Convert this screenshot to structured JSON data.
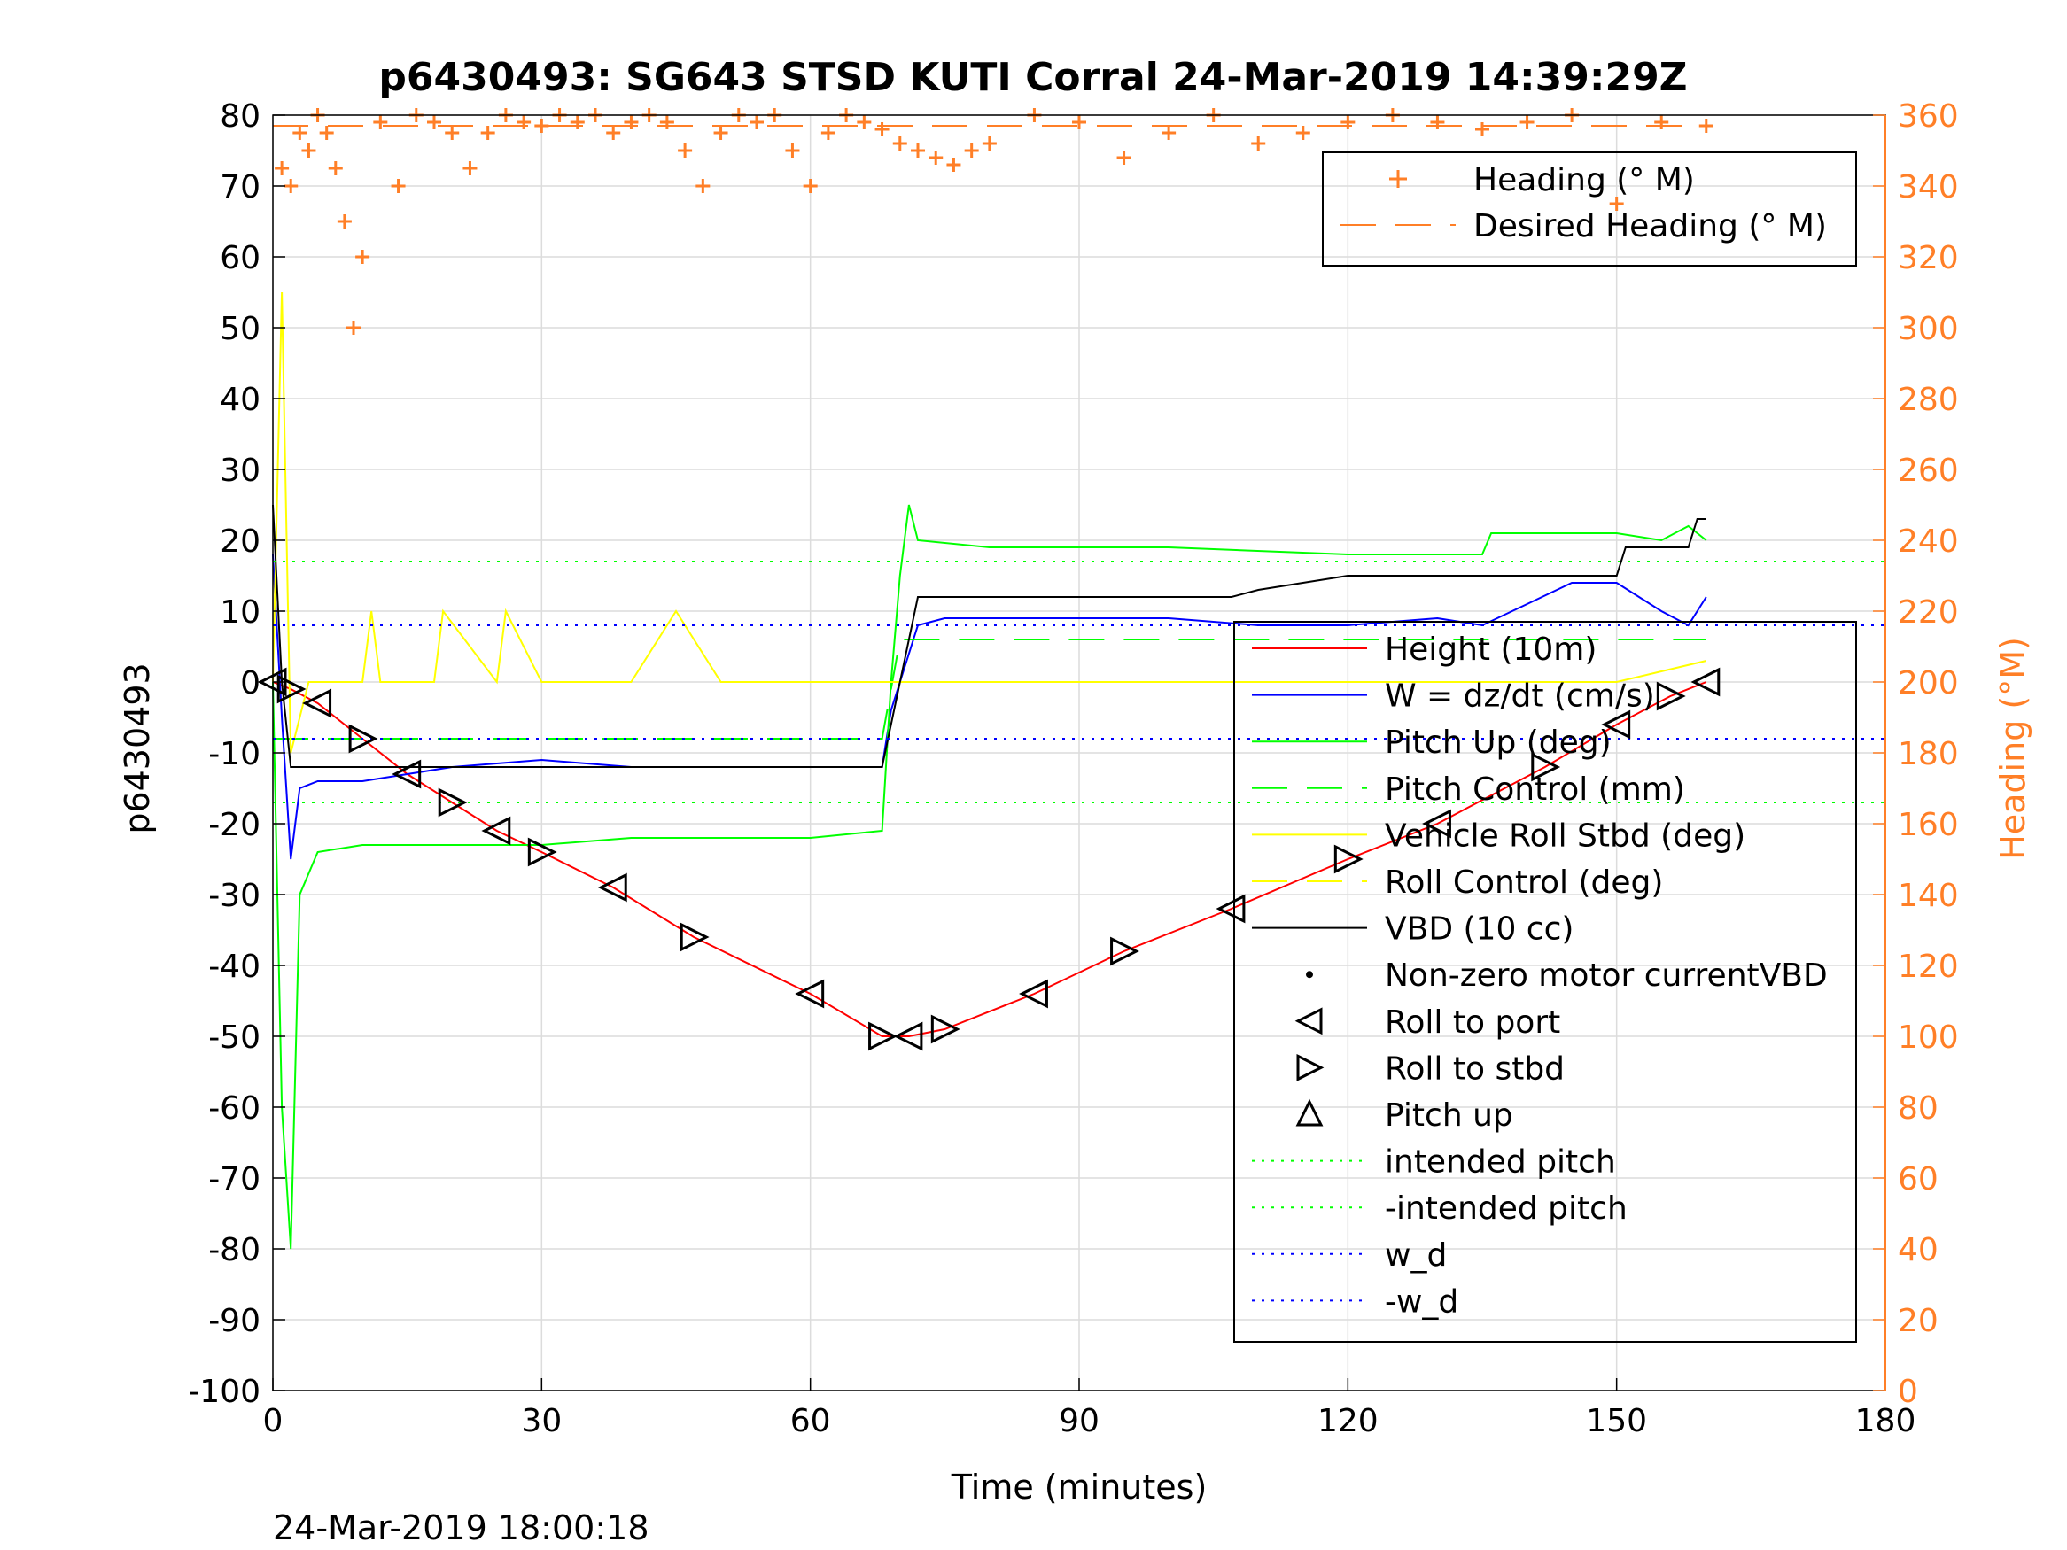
{
  "chart_data": {
    "type": "line",
    "title": "p6430493: SG643 STSD KUTI Corral 24-Mar-2019 14:39:29Z",
    "xlabel": "Time (minutes)",
    "ylabel": "p6430493",
    "y2label": "Heading (°M)",
    "footer": "24-Mar-2019 18:00:18",
    "xlim": [
      0,
      180
    ],
    "ylim": [
      -100,
      80
    ],
    "y2lim": [
      0,
      360
    ],
    "xticks": [
      0,
      30,
      60,
      90,
      120,
      150,
      180
    ],
    "yticks": [
      80,
      70,
      60,
      50,
      40,
      30,
      20,
      10,
      0,
      -10,
      -20,
      -30,
      -40,
      -50,
      -60,
      -70,
      -80,
      -90,
      -100
    ],
    "y2ticks": [
      360,
      340,
      320,
      300,
      280,
      260,
      240,
      220,
      200,
      180,
      160,
      140,
      120,
      100,
      80,
      60,
      40,
      20,
      0
    ],
    "grid": true,
    "colors": {
      "height": "#ff0000",
      "w": "#0000ff",
      "pitch": "#00ff00",
      "roll": "#ffff00",
      "vbd": "#000000",
      "heading": "#ff7f27"
    },
    "legend_right_top": [
      {
        "label": "Heading (° M)",
        "style": "plus",
        "color": "#ff7f27"
      },
      {
        "label": "Desired Heading (° M)",
        "style": "dash",
        "color": "#ff7f27"
      }
    ],
    "legend_left_bottom": [
      {
        "label": "Height (10m)",
        "style": "line",
        "color": "#ff0000"
      },
      {
        "label": "W = dz/dt (cm/s)",
        "style": "line",
        "color": "#0000ff"
      },
      {
        "label": "Pitch Up (deg)",
        "style": "line",
        "color": "#00ff00"
      },
      {
        "label": "Pitch Control (mm)",
        "style": "dash",
        "color": "#00ff00"
      },
      {
        "label": "Vehicle Roll Stbd (deg)",
        "style": "line",
        "color": "#ffff00"
      },
      {
        "label": "Roll Control (deg)",
        "style": "dash",
        "color": "#ffff00"
      },
      {
        "label": "VBD (10 cc)",
        "style": "line",
        "color": "#000000"
      },
      {
        "label": "Non-zero motor currentVBD",
        "style": "dot",
        "color": "#000000"
      },
      {
        "label": "Roll to port",
        "style": "tri-left",
        "color": "#000000"
      },
      {
        "label": "Roll to stbd",
        "style": "tri-right",
        "color": "#000000"
      },
      {
        "label": "Pitch up",
        "style": "tri-up",
        "color": "#000000"
      },
      {
        "label": "intended pitch",
        "style": "dot-line",
        "color": "#00ff00"
      },
      {
        "label": "-intended pitch",
        "style": "dot-line",
        "color": "#00ff00"
      },
      {
        "label": "w_d",
        "style": "dot-line",
        "color": "#0000ff"
      },
      {
        "label": "-w_d",
        "style": "dot-line",
        "color": "#0000ff"
      }
    ],
    "series": [
      {
        "name": "Height (10m)",
        "x": [
          0,
          2,
          5,
          10,
          15,
          20,
          25,
          30,
          38,
          47,
          60,
          68,
          71,
          75,
          85,
          95,
          107,
          120,
          130,
          142,
          150,
          156,
          160
        ],
        "y": [
          0,
          -1,
          -3,
          -8,
          -13,
          -17,
          -21,
          -24,
          -29,
          -36,
          -44,
          -50,
          -50,
          -49,
          -44,
          -38,
          -32,
          -25,
          -20,
          -12,
          -6,
          -2,
          0
        ]
      },
      {
        "name": "W = dz/dt (cm/s)",
        "x": [
          0,
          1,
          2,
          3,
          5,
          10,
          15,
          20,
          30,
          40,
          50,
          60,
          68,
          69,
          70,
          72,
          75,
          90,
          100,
          110,
          120,
          130,
          135,
          140,
          145,
          150,
          155,
          158,
          160
        ],
        "y": [
          18,
          -5,
          -25,
          -15,
          -14,
          -14,
          -13,
          -12,
          -11,
          -12,
          -12,
          -12,
          -12,
          -4,
          0,
          8,
          9,
          9,
          9,
          8,
          8,
          9,
          8,
          11,
          14,
          14,
          10,
          8,
          12
        ]
      },
      {
        "name": "Pitch Up (deg)",
        "x": [
          0,
          1,
          2,
          3,
          5,
          10,
          20,
          30,
          40,
          50,
          60,
          68,
          69,
          70,
          71,
          72,
          80,
          100,
          120,
          135,
          136,
          150,
          155,
          158,
          160
        ],
        "y": [
          0,
          -60,
          -80,
          -30,
          -24,
          -23,
          -23,
          -23,
          -22,
          -22,
          -22,
          -21,
          0,
          15,
          25,
          20,
          19,
          19,
          18,
          18,
          21,
          21,
          20,
          22,
          20
        ]
      },
      {
        "name": "Pitch Control (mm)",
        "x": [
          0,
          2,
          68,
          70,
          160
        ],
        "y": [
          -8,
          -8,
          -8,
          6,
          6
        ]
      },
      {
        "name": "Vehicle Roll Stbd (deg)",
        "x": [
          0,
          1,
          2,
          4,
          10,
          11,
          12,
          18,
          19,
          25,
          26,
          30,
          40,
          45,
          50,
          60,
          70,
          80,
          100,
          120,
          140,
          150,
          160
        ],
        "y": [
          0,
          55,
          -10,
          0,
          0,
          10,
          0,
          0,
          10,
          0,
          10,
          0,
          0,
          10,
          0,
          0,
          0,
          0,
          0,
          0,
          0,
          0,
          3
        ]
      },
      {
        "name": "VBD (10 cc)",
        "x": [
          0,
          1,
          2,
          10,
          68,
          70,
          72,
          100,
          107,
          110,
          120,
          150,
          151,
          158,
          159,
          160
        ],
        "y": [
          25,
          0,
          -12,
          -12,
          -12,
          0,
          12,
          12,
          12,
          13,
          15,
          15,
          19,
          19,
          23,
          23
        ]
      },
      {
        "name": "intended pitch",
        "x": [
          0,
          180
        ],
        "y": [
          17,
          17
        ]
      },
      {
        "name": "-intended pitch",
        "x": [
          0,
          180
        ],
        "y": [
          -17,
          -17
        ]
      },
      {
        "name": "w_d",
        "x": [
          0,
          180
        ],
        "y": [
          8,
          8
        ]
      },
      {
        "name": "-w_d",
        "x": [
          0,
          180
        ],
        "y": [
          -8,
          -8
        ]
      },
      {
        "name": "Desired Heading (° M)",
        "axis": "right",
        "x": [
          0,
          160
        ],
        "y": [
          357,
          357
        ]
      },
      {
        "name": "Heading (° M)",
        "axis": "right",
        "x": [
          1,
          2,
          3,
          4,
          5,
          6,
          7,
          8,
          9,
          10,
          12,
          14,
          16,
          18,
          20,
          22,
          24,
          26,
          28,
          30,
          32,
          34,
          36,
          38,
          40,
          42,
          44,
          46,
          48,
          50,
          52,
          54,
          56,
          58,
          60,
          62,
          64,
          66,
          68,
          70,
          72,
          74,
          76,
          78,
          80,
          85,
          90,
          95,
          100,
          105,
          110,
          115,
          120,
          125,
          130,
          135,
          140,
          145,
          150,
          155,
          160
        ],
        "y": [
          345,
          340,
          355,
          350,
          360,
          355,
          345,
          330,
          300,
          320,
          358,
          340,
          360,
          358,
          355,
          345,
          355,
          360,
          358,
          357,
          360,
          358,
          360,
          355,
          358,
          360,
          358,
          350,
          340,
          355,
          360,
          358,
          360,
          350,
          340,
          355,
          360,
          358,
          356,
          352,
          350,
          348,
          346,
          350,
          352,
          360,
          358,
          348,
          355,
          360,
          352,
          355,
          358,
          360,
          358,
          356,
          358,
          360,
          335,
          358,
          357
        ]
      }
    ]
  }
}
